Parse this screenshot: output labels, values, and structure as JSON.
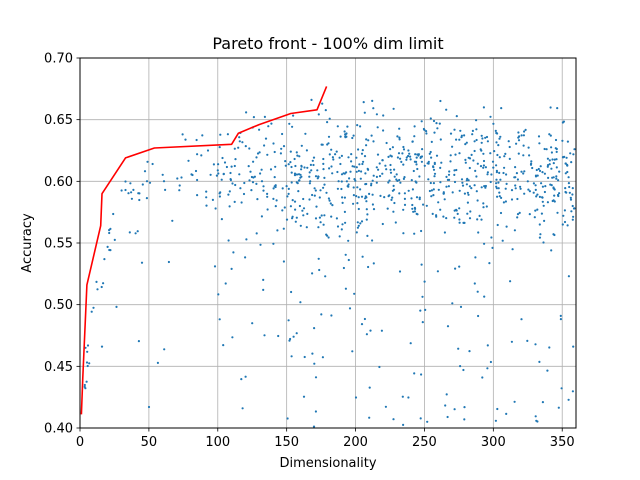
{
  "chart_data": {
    "type": "scatter",
    "title": "Pareto front - 100% dim limit",
    "xlabel": "Dimensionality",
    "ylabel": "Accuracy",
    "xlim": [
      0,
      360
    ],
    "ylim": [
      0.4,
      0.7
    ],
    "xticks": [
      0,
      50,
      100,
      150,
      200,
      250,
      300,
      350
    ],
    "xtick_labels": [
      "0",
      "50",
      "100",
      "150",
      "200",
      "250",
      "300",
      "350"
    ],
    "yticks": [
      0.4,
      0.45,
      0.5,
      0.55,
      0.6,
      0.65,
      0.7
    ],
    "ytick_labels": [
      "0.40",
      "0.45",
      "0.50",
      "0.55",
      "0.60",
      "0.65",
      "0.70"
    ],
    "grid": true,
    "colors": {
      "scatter": "#1f77b4",
      "front": "#ff0000"
    },
    "scatter_cloud": {
      "approx_count": 1000,
      "x_range": [
        1,
        360
      ],
      "y_core_range": [
        0.58,
        0.64
      ],
      "y_full_range": [
        0.4,
        0.67
      ],
      "note_on_density": "dense for x > 150"
    },
    "series": [
      {
        "name": "",
        "type": "line",
        "x": [
          1,
          2,
          5,
          15,
          16,
          33,
          54,
          110,
          115,
          130,
          153,
          172,
          179
        ],
        "y": [
          0.411,
          0.441,
          0.516,
          0.564,
          0.59,
          0.619,
          0.627,
          0.63,
          0.639,
          0.646,
          0.655,
          0.658,
          0.677
        ]
      },
      {
        "name": "",
        "type": "scatter",
        "x": [
          4,
          16,
          33,
          45,
          67,
          85,
          98,
          110,
          118,
          125,
          133,
          148,
          155,
          160,
          165,
          178,
          182,
          190,
          196,
          204,
          212,
          224,
          232,
          246,
          252,
          260,
          268,
          276,
          283,
          290,
          296,
          302,
          309,
          314,
          322,
          331,
          336,
          341,
          352,
          358
        ],
        "y": [
          0.465,
          0.466,
          0.593,
          0.534,
          0.568,
          0.622,
          0.531,
          0.529,
          0.416,
          0.485,
          0.512,
          0.535,
          0.474,
          0.502,
          0.611,
          0.523,
          0.582,
          0.561,
          0.497,
          0.608,
          0.552,
          0.588,
          0.634,
          0.622,
          0.405,
          0.583,
          0.608,
          0.641,
          0.596,
          0.572,
          0.467,
          0.613,
          0.594,
          0.545,
          0.629,
          0.604,
          0.421,
          0.617,
          0.567,
          0.466
        ]
      }
    ]
  }
}
